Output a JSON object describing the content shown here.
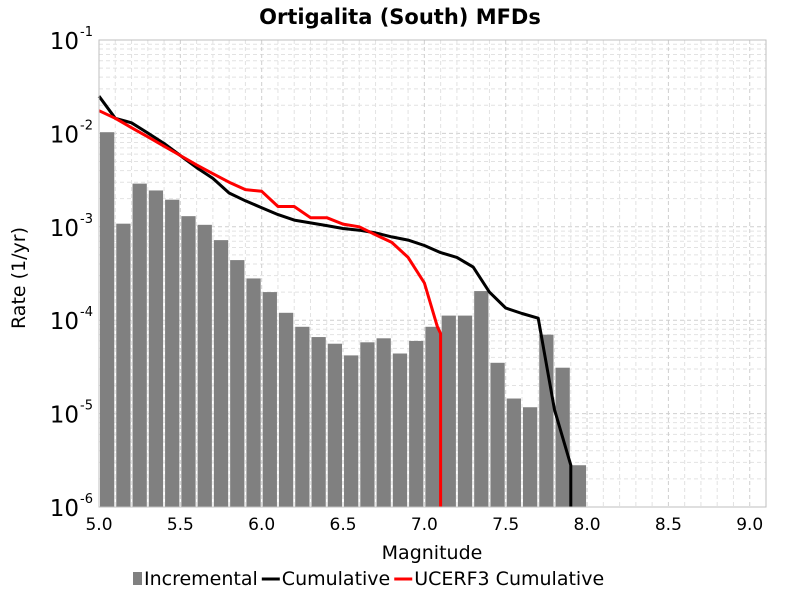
{
  "chart_data": {
    "type": "bar",
    "title": "Ortigalita (South) MFDs",
    "xlabel": "Magnitude",
    "ylabel": "Rate (1/yr)",
    "xlim": [
      5.0,
      9.1
    ],
    "ylim": [
      1e-06,
      0.1
    ],
    "yscale": "log",
    "grid": true,
    "legend_position": "bottom",
    "x_ticks": [
      "5.0",
      "5.5",
      "6.0",
      "6.5",
      "7.0",
      "7.5",
      "8.0",
      "8.5",
      "9.0"
    ],
    "y_ticks": [
      {
        "base": "10",
        "exp": "-6"
      },
      {
        "base": "10",
        "exp": "-5"
      },
      {
        "base": "10",
        "exp": "-4"
      },
      {
        "base": "10",
        "exp": "-3"
      },
      {
        "base": "10",
        "exp": "-2"
      },
      {
        "base": "10",
        "exp": "-1"
      }
    ],
    "series": [
      {
        "name": "Incremental",
        "kind": "bar",
        "color": "#808080",
        "x": [
          5.05,
          5.15,
          5.25,
          5.35,
          5.45,
          5.55,
          5.65,
          5.75,
          5.85,
          5.95,
          6.05,
          6.15,
          6.25,
          6.35,
          6.45,
          6.55,
          6.65,
          6.75,
          6.85,
          6.95,
          7.05,
          7.15,
          7.25,
          7.35,
          7.45,
          7.55,
          7.65,
          7.75,
          7.85,
          7.95
        ],
        "y": [
          0.0103,
          0.00108,
          0.0029,
          0.00245,
          0.00195,
          0.0013,
          0.00105,
          0.00072,
          0.00044,
          0.00028,
          0.0002,
          0.00012,
          8.5e-05,
          6.6e-05,
          5.6e-05,
          4.2e-05,
          5.8e-05,
          6.4e-05,
          4.4e-05,
          6e-05,
          8.5e-05,
          0.000112,
          0.000112,
          0.000205,
          3.5e-05,
          1.45e-05,
          1.17e-05,
          7e-05,
          3.1e-05,
          2.8e-06
        ]
      },
      {
        "name": "Cumulative",
        "kind": "line",
        "color": "#000000",
        "x": [
          5.0,
          5.1,
          5.2,
          5.3,
          5.4,
          5.5,
          5.6,
          5.7,
          5.8,
          5.9,
          6.0,
          6.1,
          6.2,
          6.3,
          6.4,
          6.5,
          6.6,
          6.7,
          6.8,
          6.9,
          7.0,
          7.1,
          7.2,
          7.3,
          7.4,
          7.5,
          7.6,
          7.7,
          7.8,
          7.9,
          7.9
        ],
        "y": [
          0.025,
          0.0145,
          0.013,
          0.0101,
          0.0078,
          0.0058,
          0.0043,
          0.0033,
          0.0023,
          0.0019,
          0.0016,
          0.00135,
          0.00118,
          0.0011,
          0.00103,
          0.00096,
          0.00092,
          0.00086,
          0.00078,
          0.00072,
          0.00063,
          0.00053,
          0.00047,
          0.00037,
          0.0002,
          0.000135,
          0.000118,
          0.000105,
          1.1e-05,
          2.8e-06,
          1e-06
        ]
      },
      {
        "name": "UCERF3 Cumulative",
        "kind": "line",
        "color": "#ff0000",
        "x": [
          5.0,
          5.1,
          5.2,
          5.3,
          5.4,
          5.5,
          5.6,
          5.7,
          5.8,
          5.9,
          6.0,
          6.1,
          6.2,
          6.3,
          6.4,
          6.5,
          6.6,
          6.7,
          6.8,
          6.9,
          7.0,
          7.08,
          7.1,
          7.1
        ],
        "y": [
          0.0175,
          0.0145,
          0.0115,
          0.0092,
          0.0073,
          0.0058,
          0.0046,
          0.0037,
          0.003,
          0.0025,
          0.0024,
          0.00165,
          0.00165,
          0.00125,
          0.00125,
          0.00107,
          0.001,
          0.00082,
          0.00068,
          0.00047,
          0.00025,
          8.5e-05,
          7.2e-05,
          1e-06
        ]
      }
    ]
  }
}
